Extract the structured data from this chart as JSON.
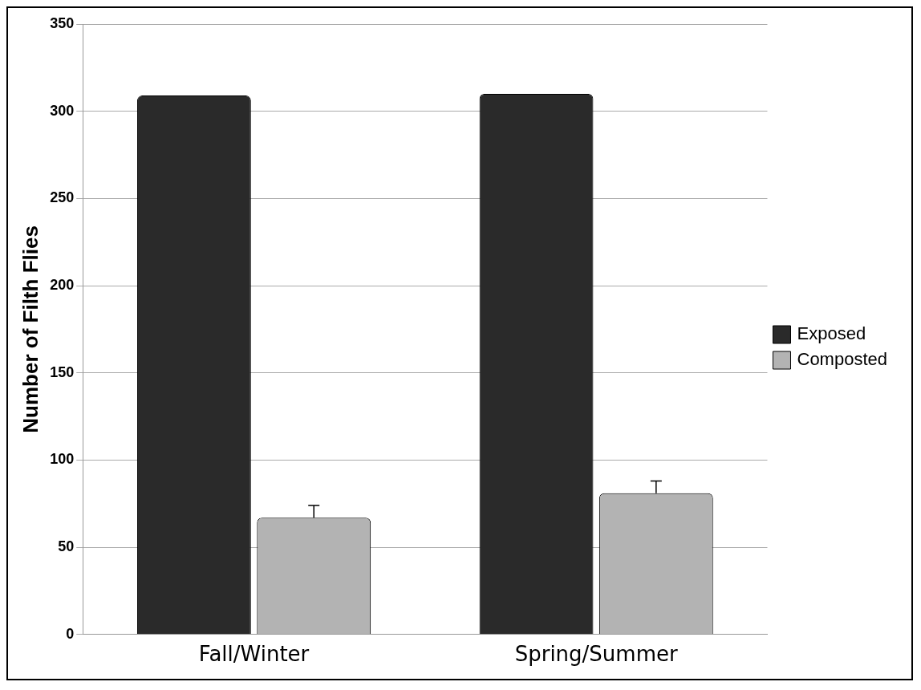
{
  "chart_data": {
    "type": "bar",
    "ylabel": "Number of Filth Flies",
    "categories": [
      "Fall/Winter",
      "Spring/Summer"
    ],
    "series": [
      {
        "name": "Exposed",
        "color": "#2a2a2a",
        "values": [
          309,
          310
        ]
      },
      {
        "name": "Composted",
        "color": "#b3b3b3",
        "values": [
          67,
          81
        ],
        "errors": [
          [
            67,
            74
          ],
          [
            81,
            88
          ]
        ]
      }
    ],
    "ylim": [
      0,
      350
    ],
    "yticks": [
      0,
      50,
      100,
      150,
      200,
      250,
      300,
      350
    ],
    "grid": "y",
    "legend": "right"
  }
}
